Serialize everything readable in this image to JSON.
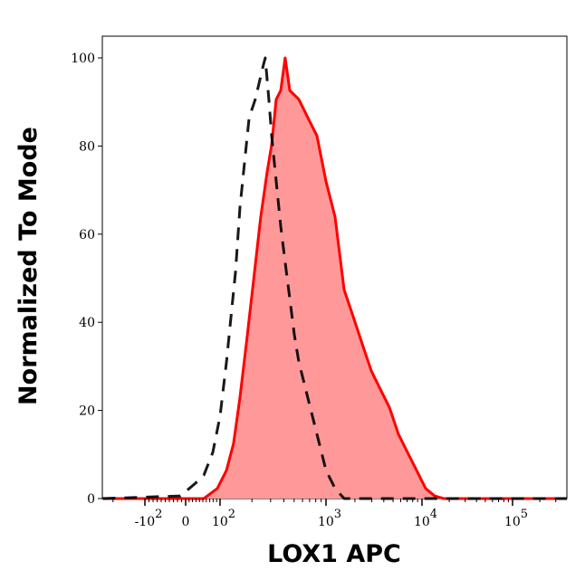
{
  "chart_data": {
    "type": "area",
    "title": "",
    "xlabel": "LOX1 APC",
    "ylabel": "Normalized To Mode",
    "x_scale": "biexponential",
    "xlim": [
      -250,
      400000
    ],
    "ylim": [
      0,
      105
    ],
    "grid": false,
    "legend": "none",
    "y_ticks": [
      0,
      20,
      40,
      60,
      80,
      100
    ],
    "x_ticks": [
      {
        "value": -100,
        "base": "-10",
        "exp": "2"
      },
      {
        "value": 0,
        "base": "0",
        "exp": ""
      },
      {
        "value": 100,
        "base": "10",
        "exp": "2"
      },
      {
        "value": 1000,
        "base": "10",
        "exp": "3"
      },
      {
        "value": 10000,
        "base": "10",
        "exp": "4"
      },
      {
        "value": 100000,
        "base": "10",
        "exp": "5"
      }
    ],
    "series": [
      {
        "style": "solid-filled",
        "line_color": "#ff0000",
        "fill_color": "#ff9999",
        "x": [
          -250,
          53,
          92,
          115,
          134,
          154,
          177,
          207,
          242,
          278,
          307,
          339,
          374,
          412,
          455,
          554,
          675,
          822,
          1000,
          1243,
          1544,
          1919,
          2384,
          2963,
          3681,
          4574,
          5683,
          7062,
          8775,
          10965,
          13804,
          17378,
          400000
        ],
        "y": [
          0,
          0,
          2.3,
          6.4,
          12.5,
          22.8,
          35.1,
          49.5,
          63.9,
          74.1,
          80.3,
          90.6,
          92.6,
          100,
          92.6,
          90.6,
          86.4,
          82.3,
          72,
          63.9,
          47.4,
          41.3,
          35.1,
          29,
          24.8,
          20.7,
          14.6,
          10.5,
          6.4,
          2.3,
          0.6,
          0,
          0
        ]
      },
      {
        "style": "dashed",
        "line_color": "#000000",
        "x": [
          -250,
          -13,
          26,
          53,
          79,
          100,
          115,
          127,
          140,
          154,
          170,
          188,
          215,
          252,
          267,
          289,
          307,
          339,
          374,
          412,
          455,
          502,
          554,
          611,
          675,
          822,
          1000,
          1243,
          1544,
          400000
        ],
        "y": [
          0,
          0.6,
          3.3,
          5.3,
          10.5,
          18.7,
          31,
          41.3,
          51.5,
          65.9,
          76.2,
          86.4,
          90.6,
          97.7,
          100,
          90.6,
          82.3,
          72,
          61.8,
          53.6,
          45.4,
          37.2,
          31,
          26.9,
          22.8,
          14.6,
          6.4,
          2.3,
          0,
          0
        ]
      }
    ]
  }
}
